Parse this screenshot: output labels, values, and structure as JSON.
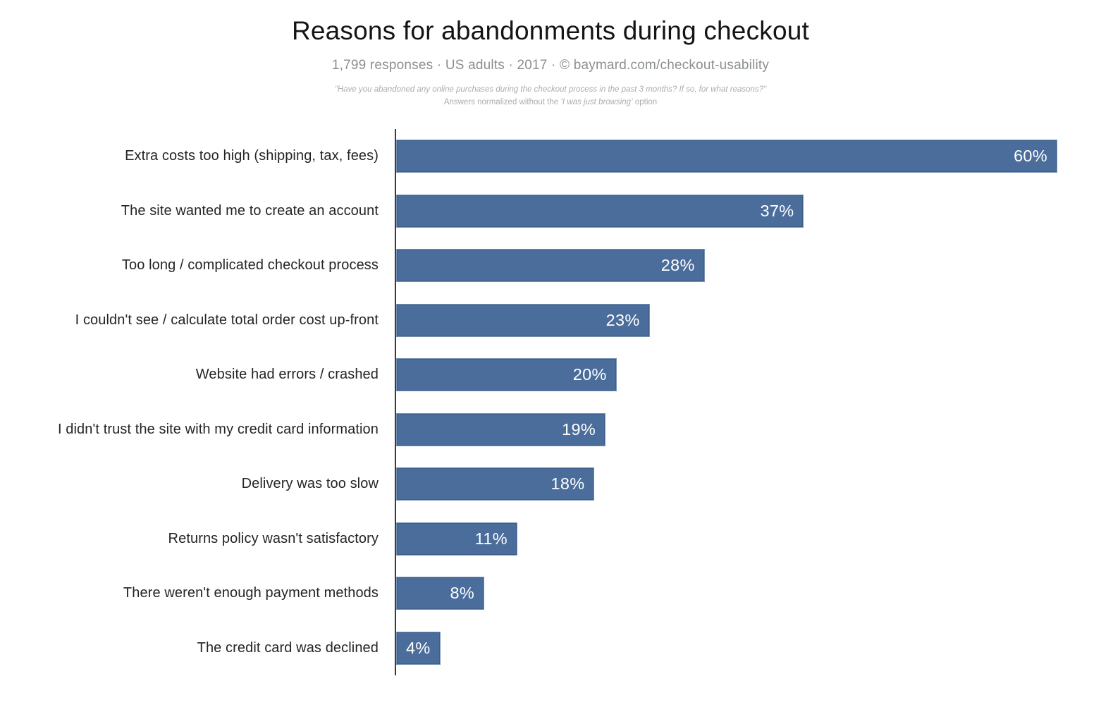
{
  "header": {
    "title": "Reasons for abandonments during checkout",
    "subtitle": "1,799 responses  ·  US adults  ·  2017  ·  ©  baymard.com/checkout-usability",
    "quote_line1": "\"Have you abandoned any online purchases during the checkout process in the past 3 months? If so, for what reasons?\"",
    "quote_line2_prefix": "Answers normalized without the ",
    "quote_line2_italic": "‘I was just browsing’",
    "quote_line2_suffix": " option"
  },
  "chart_data": {
    "type": "bar",
    "orientation": "horizontal",
    "title": "Reasons for abandonments during checkout",
    "subtitle": "1,799 responses · US adults · 2017 · © baymard.com/checkout-usability",
    "categories": [
      "Extra costs too high (shipping, tax, fees)",
      "The site wanted me to create an account",
      "Too long / complicated checkout process",
      "I couldn't see / calculate total order cost up-front",
      "Website had errors / crashed",
      "I didn't trust the site with my credit card information",
      "Delivery was too slow",
      "Returns policy wasn't satisfactory",
      "There weren't enough payment methods",
      "The credit card was declined"
    ],
    "values": [
      60,
      37,
      28,
      23,
      20,
      19,
      18,
      11,
      8,
      4
    ],
    "value_labels": [
      "60%",
      "37%",
      "28%",
      "23%",
      "20%",
      "19%",
      "18%",
      "11%",
      "8%",
      "4%"
    ],
    "xlabel": "",
    "ylabel": "",
    "xlim": [
      0,
      60
    ],
    "grid": false,
    "legend": "none",
    "bar_color": "#4a6d9c",
    "axis_color": "#3a3a3a",
    "value_label_color": "#ffffff"
  }
}
